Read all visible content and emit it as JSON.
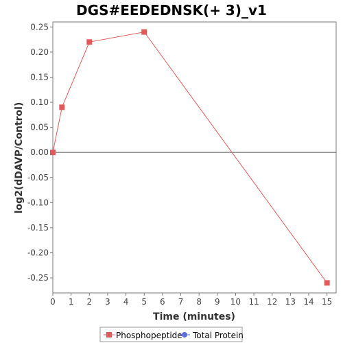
{
  "chart_data": {
    "type": "line",
    "title": "DGS#EEDEDNSK(+ 3)_v1",
    "xlabel": "Time (minutes)",
    "ylabel": "log2(dDAVP/Control)",
    "xlim": [
      0,
      15.5
    ],
    "ylim": [
      -0.28,
      0.26
    ],
    "x_ticks": [
      0,
      1,
      2,
      3,
      4,
      5,
      6,
      7,
      8,
      9,
      10,
      11,
      12,
      13,
      14,
      15
    ],
    "y_ticks": [
      0.25,
      0.2,
      0.15,
      0.1,
      0.05,
      0.0,
      -0.05,
      -0.1,
      -0.15,
      -0.2,
      -0.25
    ],
    "y_tick_labels": [
      "0.25",
      "0.20",
      "0.15",
      "0.10",
      "0.05",
      "0.00",
      "-0.05",
      "-0.10",
      "-0.15",
      "-0.20",
      "-0.25"
    ],
    "zero_line": 0,
    "grid": false,
    "legend_position": "bottom-center",
    "series": [
      {
        "name": "Phosphopeptide",
        "color": "#e05a5a",
        "marker": "square",
        "x": [
          0,
          0.5,
          2,
          5,
          15
        ],
        "y": [
          0.0,
          0.09,
          0.22,
          0.24,
          -0.26
        ]
      }
    ],
    "legend": [
      {
        "label": "Phosphopeptide",
        "color": "#e05a5a",
        "marker": "square"
      },
      {
        "label": "Total Protein",
        "color": "#5a6ee0",
        "marker": "circle"
      }
    ]
  }
}
